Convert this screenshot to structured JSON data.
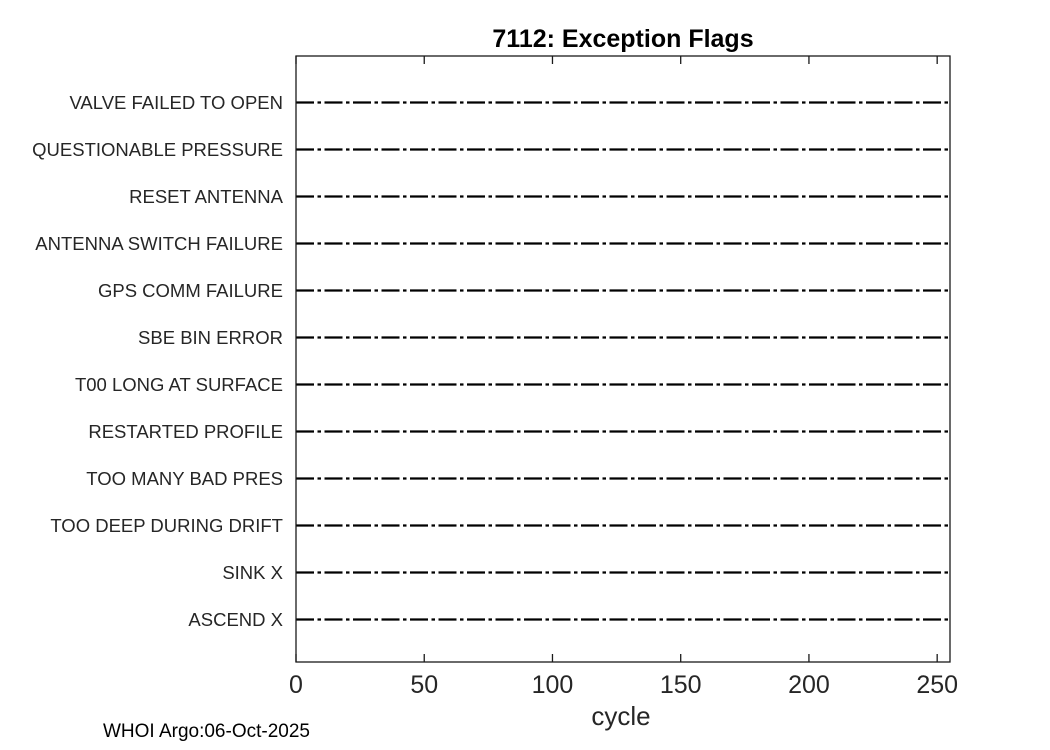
{
  "chart_data": {
    "type": "line",
    "title": "7112: Exception Flags",
    "xlabel": "cycle",
    "ylabel": "",
    "xlim": [
      0,
      255
    ],
    "x_ticks": [
      0,
      50,
      100,
      150,
      200,
      250
    ],
    "grid": false,
    "legend": null,
    "categories_top_to_bottom": [
      "VALVE FAILED TO OPEN",
      "QUESTIONABLE PRESSURE",
      "RESET ANTENNA",
      "ANTENNA SWITCH FAILURE",
      "GPS COMM FAILURE",
      "SBE BIN ERROR",
      "T00 LONG AT SURFACE",
      "RESTARTED PROFILE",
      "TOO MANY BAD PRES",
      "TOO DEEP DURING DRIFT",
      "SINK X",
      "ASCEND X"
    ],
    "series": [
      {
        "name": "VALVE FAILED TO OPEN",
        "x_span": [
          0,
          255
        ],
        "events": []
      },
      {
        "name": "QUESTIONABLE PRESSURE",
        "x_span": [
          0,
          255
        ],
        "events": []
      },
      {
        "name": "RESET ANTENNA",
        "x_span": [
          0,
          255
        ],
        "events": []
      },
      {
        "name": "ANTENNA SWITCH FAILURE",
        "x_span": [
          0,
          255
        ],
        "events": []
      },
      {
        "name": "GPS COMM FAILURE",
        "x_span": [
          0,
          255
        ],
        "events": []
      },
      {
        "name": "SBE BIN ERROR",
        "x_span": [
          0,
          255
        ],
        "events": []
      },
      {
        "name": "T00 LONG AT SURFACE",
        "x_span": [
          0,
          255
        ],
        "events": []
      },
      {
        "name": "RESTARTED PROFILE",
        "x_span": [
          0,
          255
        ],
        "events": []
      },
      {
        "name": "TOO MANY BAD PRES",
        "x_span": [
          0,
          255
        ],
        "events": []
      },
      {
        "name": "TOO DEEP DURING DRIFT",
        "x_span": [
          0,
          255
        ],
        "events": []
      },
      {
        "name": "SINK X",
        "x_span": [
          0,
          255
        ],
        "events": []
      },
      {
        "name": "ASCEND X",
        "x_span": [
          0,
          255
        ],
        "events": []
      }
    ],
    "line_style": "dash-dot",
    "line_color": "#000000",
    "axis_color": "#1a1a1a",
    "text_color": "#262626",
    "background_color": "#ffffff"
  },
  "footer": {
    "credit": "WHOI Argo:06-Oct-2025"
  }
}
